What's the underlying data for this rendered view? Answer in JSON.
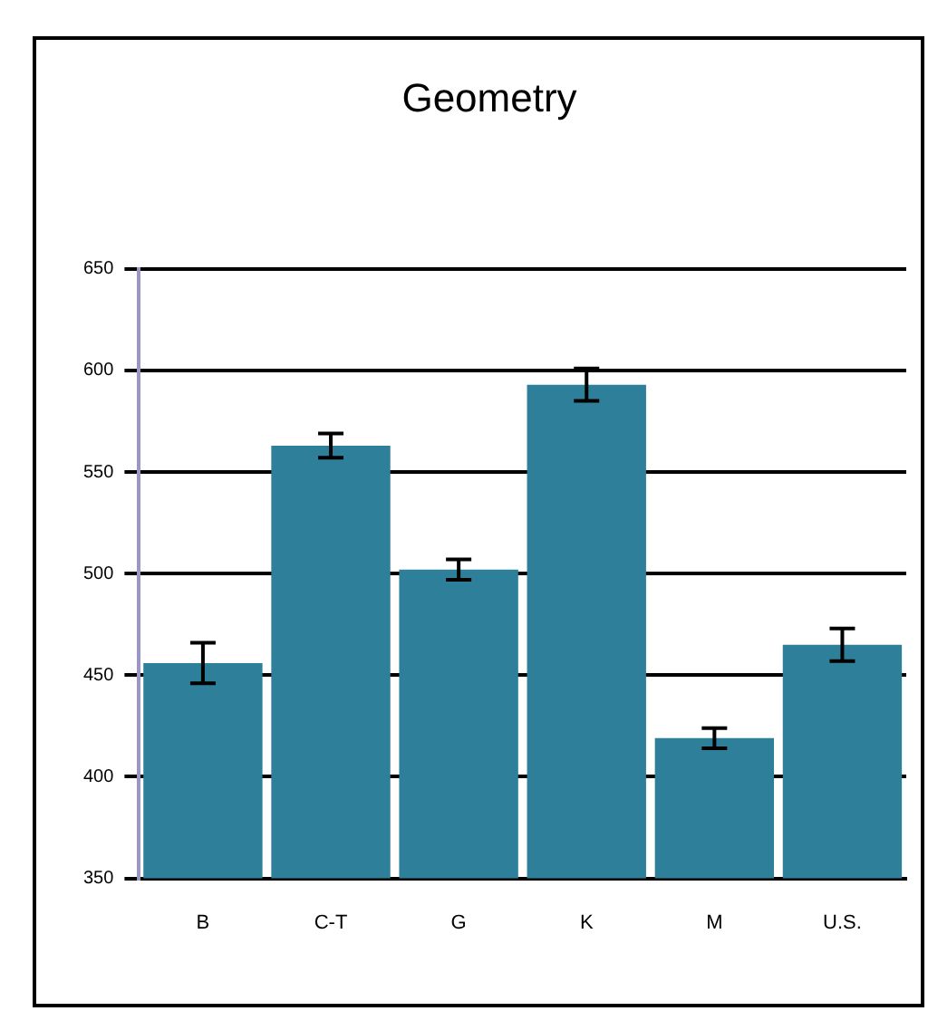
{
  "chart_data": {
    "type": "bar",
    "title": "Geometry",
    "categories": [
      "B",
      "C-T",
      "G",
      "K",
      "M",
      "U.S."
    ],
    "values": [
      456,
      563,
      502,
      593,
      419,
      465
    ],
    "errors": [
      10,
      6,
      5,
      8,
      5,
      8
    ],
    "color": "#2e7f99",
    "ylim": [
      350,
      650
    ],
    "yticks": [
      350,
      400,
      450,
      500,
      550,
      600,
      650
    ],
    "grid": "y",
    "legend": false
  }
}
